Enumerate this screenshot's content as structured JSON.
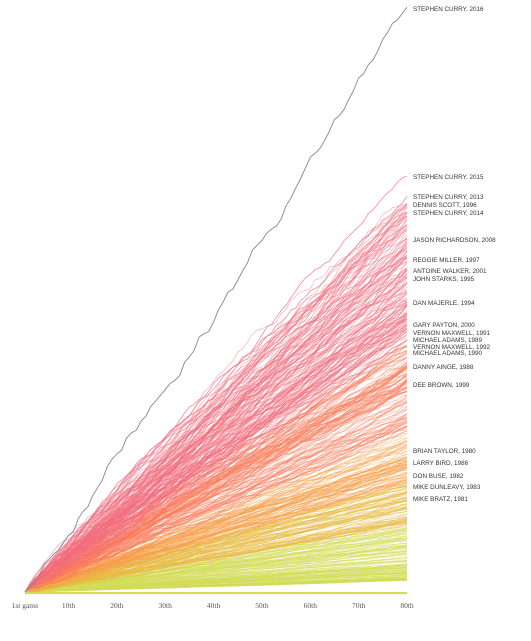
{
  "chart_data": {
    "type": "line",
    "x_ticks": [
      "1st game",
      "10th",
      "20th",
      "30th",
      "40th",
      "50th",
      "60th",
      "70th",
      "80th"
    ],
    "x_tick_values": [
      1,
      10,
      20,
      30,
      40,
      50,
      60,
      70,
      80
    ],
    "xlim": [
      1,
      80
    ],
    "ylim": [
      0,
      400
    ],
    "grid": false,
    "colors": {
      "highlight": "#888888",
      "high": "#f26d7d",
      "mid_high": "#fb7e5c",
      "mid": "#f7a04a",
      "mid_low": "#e8bb45",
      "low": "#d4dc58",
      "baseline": "#d4dc58"
    },
    "highlight_series": {
      "name": "STEPHEN CURRY, 2016",
      "final": 402
    },
    "labeled_series": [
      {
        "name": "STEPHEN CURRY, 2016",
        "final": 402
      },
      {
        "name": "STEPHEN CURRY, 2015",
        "final": 286
      },
      {
        "name": "STEPHEN CURRY, 2013",
        "final": 272
      },
      {
        "name": "DENNIS SCOTT, 1996",
        "final": 267
      },
      {
        "name": "STEPHEN CURRY, 2014",
        "final": 261
      },
      {
        "name": "JASON RICHARDSON, 2008",
        "final": 243
      },
      {
        "name": "REGGIE MILLER, 1997",
        "final": 229
      },
      {
        "name": "ANTOINE WALKER, 2001",
        "final": 221
      },
      {
        "name": "JOHN STARKS, 1995",
        "final": 217
      },
      {
        "name": "DAN MAJERLE, 1994",
        "final": 199
      },
      {
        "name": "GARY PAYTON, 2000",
        "final": 184
      },
      {
        "name": "VERNON MAXWELL, 1991",
        "final": 179
      },
      {
        "name": "MICHAEL ADAMS, 1989",
        "final": 173
      },
      {
        "name": "VERNON MAXWELL, 1992",
        "final": 169
      },
      {
        "name": "MICHAEL ADAMS, 1990",
        "final": 166
      },
      {
        "name": "DANNY AINGE, 1988",
        "final": 154
      },
      {
        "name": "DEE BROWN, 1999",
        "final": 141
      },
      {
        "name": "BRIAN TAYLOR, 1980",
        "final": 90
      },
      {
        "name": "LARRY BIRD, 1986",
        "final": 82
      },
      {
        "name": "DON BUSE, 1982",
        "final": 73
      },
      {
        "name": "MIKE DUNLEAVY, 1983",
        "final": 65
      },
      {
        "name": "MIKE BRATZ, 1981",
        "final": 57
      }
    ]
  }
}
